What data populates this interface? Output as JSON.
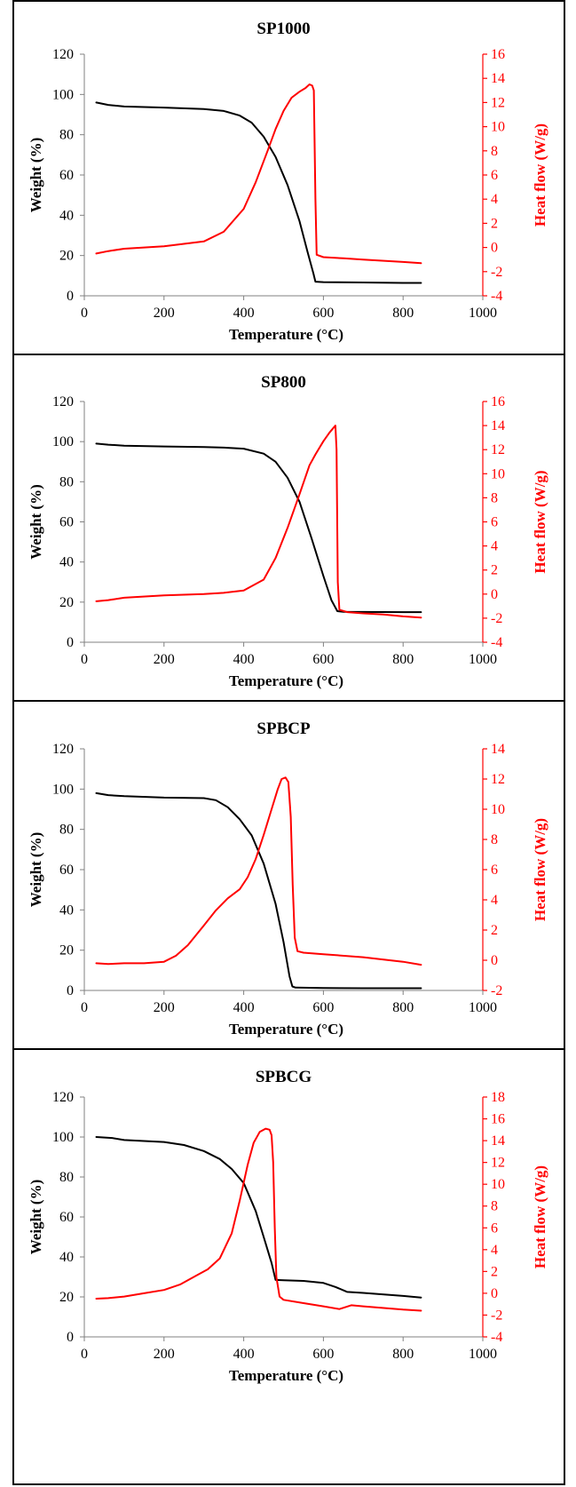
{
  "colors": {
    "weight": "#000000",
    "heat": "#ff0000",
    "axis_left": "#808080",
    "axis_right": "#ff0000"
  },
  "chart_data": [
    {
      "type": "line",
      "title": "SP1000",
      "xlabel": "Temperature (°C)",
      "ylabel": "Weight  (%)",
      "y2label": "Heat flow (W/g)",
      "xlim": [
        0,
        1000
      ],
      "ylim": [
        0,
        120
      ],
      "y2lim": [
        -4,
        16
      ],
      "xticks": [
        0,
        200,
        400,
        600,
        800,
        1000
      ],
      "yticks": [
        0,
        20,
        40,
        60,
        80,
        100,
        120
      ],
      "y2ticks": [
        -4,
        -2,
        0,
        2,
        4,
        6,
        8,
        10,
        12,
        14,
        16
      ],
      "grid": false,
      "series": [
        {
          "axis": "left",
          "points": [
            [
              30,
              96
            ],
            [
              60,
              94.8
            ],
            [
              100,
              94
            ],
            [
              200,
              93.5
            ],
            [
              300,
              92.8
            ],
            [
              350,
              91.8
            ],
            [
              390,
              89.5
            ],
            [
              420,
              86
            ],
            [
              450,
              79
            ],
            [
              480,
              69
            ],
            [
              510,
              55
            ],
            [
              540,
              37
            ],
            [
              560,
              22
            ],
            [
              575,
              11
            ],
            [
              580,
              7
            ],
            [
              600,
              6.8
            ],
            [
              700,
              6.6
            ],
            [
              800,
              6.4
            ],
            [
              845,
              6.4
            ]
          ]
        },
        {
          "axis": "right",
          "points": [
            [
              30,
              -0.5
            ],
            [
              60,
              -0.3
            ],
            [
              100,
              -0.1
            ],
            [
              200,
              0.1
            ],
            [
              300,
              0.5
            ],
            [
              350,
              1.3
            ],
            [
              400,
              3.2
            ],
            [
              430,
              5.4
            ],
            [
              460,
              8
            ],
            [
              480,
              9.8
            ],
            [
              500,
              11.3
            ],
            [
              520,
              12.4
            ],
            [
              540,
              12.9
            ],
            [
              555,
              13.2
            ],
            [
              565,
              13.5
            ],
            [
              572,
              13.4
            ],
            [
              576,
              13
            ],
            [
              580,
              4
            ],
            [
              583,
              -0.6
            ],
            [
              600,
              -0.8
            ],
            [
              650,
              -0.9
            ],
            [
              700,
              -1.0
            ],
            [
              800,
              -1.2
            ],
            [
              845,
              -1.3
            ]
          ]
        }
      ]
    },
    {
      "type": "line",
      "title": "SP800",
      "xlabel": "Temperature (°C)",
      "ylabel": "Weight  (%)",
      "y2label": "Heat flow (W/g)",
      "xlim": [
        0,
        1000
      ],
      "ylim": [
        0,
        120
      ],
      "y2lim": [
        -4,
        16
      ],
      "xticks": [
        0,
        200,
        400,
        600,
        800,
        1000
      ],
      "yticks": [
        0,
        20,
        40,
        60,
        80,
        100,
        120
      ],
      "y2ticks": [
        -4,
        -2,
        0,
        2,
        4,
        6,
        8,
        10,
        12,
        14,
        16
      ],
      "grid": false,
      "series": [
        {
          "axis": "left",
          "points": [
            [
              30,
              99
            ],
            [
              60,
              98.5
            ],
            [
              100,
              98
            ],
            [
              200,
              97.6
            ],
            [
              300,
              97.3
            ],
            [
              350,
              97
            ],
            [
              400,
              96.5
            ],
            [
              450,
              94
            ],
            [
              480,
              90
            ],
            [
              510,
              82
            ],
            [
              540,
              70
            ],
            [
              570,
              52
            ],
            [
              600,
              33
            ],
            [
              620,
              21
            ],
            [
              635,
              15.5
            ],
            [
              650,
              15.2
            ],
            [
              700,
              15.1
            ],
            [
              800,
              15
            ],
            [
              845,
              15
            ]
          ]
        },
        {
          "axis": "right",
          "points": [
            [
              30,
              -0.6
            ],
            [
              60,
              -0.5
            ],
            [
              100,
              -0.3
            ],
            [
              200,
              -0.1
            ],
            [
              300,
              0
            ],
            [
              350,
              0.1
            ],
            [
              400,
              0.3
            ],
            [
              450,
              1.2
            ],
            [
              480,
              3
            ],
            [
              510,
              5.5
            ],
            [
              540,
              8.3
            ],
            [
              565,
              10.7
            ],
            [
              580,
              11.6
            ],
            [
              600,
              12.7
            ],
            [
              615,
              13.4
            ],
            [
              625,
              13.8
            ],
            [
              630,
              14
            ],
            [
              633,
              12
            ],
            [
              636,
              1
            ],
            [
              640,
              -1.3
            ],
            [
              660,
              -1.5
            ],
            [
              700,
              -1.6
            ],
            [
              750,
              -1.7
            ],
            [
              800,
              -1.85
            ],
            [
              845,
              -1.95
            ]
          ]
        }
      ]
    },
    {
      "type": "line",
      "title": "SPBCP",
      "xlabel": "Temperature (°C)",
      "ylabel": "Weight  (%)",
      "y2label": "Heat flow  (W/g)",
      "xlim": [
        0,
        1000
      ],
      "ylim": [
        0,
        120
      ],
      "y2lim": [
        -2,
        14
      ],
      "xticks": [
        0,
        200,
        400,
        600,
        800,
        1000
      ],
      "yticks": [
        0,
        20,
        40,
        60,
        80,
        100,
        120
      ],
      "y2ticks": [
        -2,
        0,
        2,
        4,
        6,
        8,
        10,
        12,
        14
      ],
      "grid": false,
      "series": [
        {
          "axis": "left",
          "points": [
            [
              30,
              98
            ],
            [
              60,
              97
            ],
            [
              100,
              96.5
            ],
            [
              200,
              95.8
            ],
            [
              300,
              95.5
            ],
            [
              330,
              94.5
            ],
            [
              360,
              91
            ],
            [
              390,
              85
            ],
            [
              420,
              77
            ],
            [
              450,
              63
            ],
            [
              480,
              43
            ],
            [
              500,
              24
            ],
            [
              515,
              7
            ],
            [
              522,
              2
            ],
            [
              530,
              1.4
            ],
            [
              600,
              1.2
            ],
            [
              700,
              1.1
            ],
            [
              800,
              1.1
            ],
            [
              845,
              1.1
            ]
          ]
        },
        {
          "axis": "right",
          "points": [
            [
              30,
              -0.2
            ],
            [
              60,
              -0.25
            ],
            [
              100,
              -0.2
            ],
            [
              150,
              -0.2
            ],
            [
              200,
              -0.1
            ],
            [
              230,
              0.3
            ],
            [
              260,
              1
            ],
            [
              300,
              2.3
            ],
            [
              330,
              3.3
            ],
            [
              360,
              4.1
            ],
            [
              390,
              4.7
            ],
            [
              410,
              5.5
            ],
            [
              430,
              6.7
            ],
            [
              450,
              8.3
            ],
            [
              470,
              10
            ],
            [
              485,
              11.3
            ],
            [
              495,
              12
            ],
            [
              505,
              12.1
            ],
            [
              512,
              11.8
            ],
            [
              518,
              9.5
            ],
            [
              523,
              5
            ],
            [
              528,
              1.5
            ],
            [
              535,
              0.6
            ],
            [
              550,
              0.5
            ],
            [
              600,
              0.4
            ],
            [
              700,
              0.2
            ],
            [
              800,
              -0.1
            ],
            [
              845,
              -0.3
            ]
          ]
        }
      ]
    },
    {
      "type": "line",
      "title": "SPBCG",
      "xlabel": "Temperature (°C)",
      "ylabel": "Weight  (%)",
      "y2label": "Heat flow (W/g)",
      "xlim": [
        0,
        1000
      ],
      "ylim": [
        0,
        120
      ],
      "y2lim": [
        -4,
        18
      ],
      "xticks": [
        0,
        200,
        400,
        600,
        800,
        1000
      ],
      "yticks": [
        0,
        20,
        40,
        60,
        80,
        100,
        120
      ],
      "y2ticks": [
        -4,
        -2,
        0,
        2,
        4,
        6,
        8,
        10,
        12,
        14,
        16,
        18
      ],
      "grid": false,
      "series": [
        {
          "axis": "left",
          "points": [
            [
              30,
              100
            ],
            [
              70,
              99.5
            ],
            [
              100,
              98.5
            ],
            [
              200,
              97.5
            ],
            [
              250,
              96
            ],
            [
              300,
              93
            ],
            [
              340,
              89
            ],
            [
              370,
              84
            ],
            [
              400,
              77
            ],
            [
              430,
              63
            ],
            [
              450,
              50
            ],
            [
              470,
              37
            ],
            [
              480,
              28.5
            ],
            [
              500,
              28.3
            ],
            [
              550,
              28
            ],
            [
              600,
              27
            ],
            [
              630,
              25
            ],
            [
              660,
              22.5
            ],
            [
              700,
              22
            ],
            [
              800,
              20.5
            ],
            [
              845,
              19.7
            ]
          ]
        },
        {
          "axis": "right",
          "points": [
            [
              30,
              -0.5
            ],
            [
              60,
              -0.45
            ],
            [
              100,
              -0.3
            ],
            [
              150,
              0
            ],
            [
              200,
              0.3
            ],
            [
              240,
              0.8
            ],
            [
              280,
              1.6
            ],
            [
              310,
              2.2
            ],
            [
              340,
              3.2
            ],
            [
              370,
              5.5
            ],
            [
              390,
              8.5
            ],
            [
              410,
              11.8
            ],
            [
              425,
              13.8
            ],
            [
              440,
              14.8
            ],
            [
              455,
              15.1
            ],
            [
              465,
              15
            ],
            [
              470,
              14.5
            ],
            [
              474,
              12
            ],
            [
              478,
              6
            ],
            [
              482,
              1.5
            ],
            [
              490,
              -0.3
            ],
            [
              500,
              -0.6
            ],
            [
              550,
              -0.9
            ],
            [
              600,
              -1.2
            ],
            [
              640,
              -1.45
            ],
            [
              670,
              -1.1
            ],
            [
              700,
              -1.2
            ],
            [
              800,
              -1.5
            ],
            [
              845,
              -1.6
            ]
          ]
        }
      ]
    }
  ]
}
